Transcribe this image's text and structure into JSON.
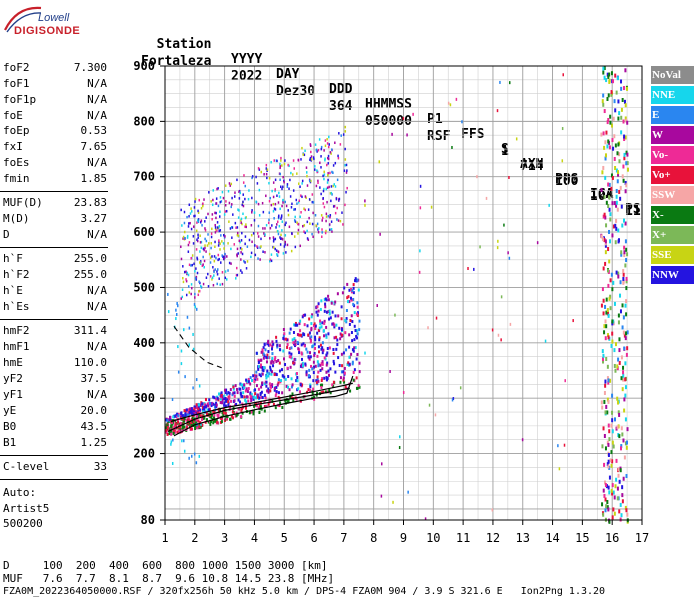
{
  "logo": {
    "line1": "Lowell",
    "line2": "DIGISONDE"
  },
  "header": {
    "row1": [
      "Station",
      "YYYY",
      "DAY",
      "DDD",
      "HHMMSS",
      "P1",
      "FFS",
      "S",
      "AXN",
      "PPS",
      "IGA",
      "PS"
    ],
    "row2": [
      "Fortaleza",
      "2022",
      "Dez30",
      "364",
      "050000",
      "RSF",
      "1",
      "714",
      "100",
      "10+",
      "11"
    ]
  },
  "params": [
    {
      "name": "foF2",
      "value": "7.300"
    },
    {
      "name": "foF1",
      "value": "N/A"
    },
    {
      "name": "foF1p",
      "value": "N/A"
    },
    {
      "name": "foE",
      "value": "N/A"
    },
    {
      "name": "foEp",
      "value": "0.53"
    },
    {
      "name": "fxI",
      "value": "7.65"
    },
    {
      "name": "foEs",
      "value": "N/A"
    },
    {
      "name": "fmin",
      "value": "1.85"
    },
    {
      "name": "MUF(D)",
      "value": "23.83"
    },
    {
      "name": "M(D)",
      "value": "3.27"
    },
    {
      "name": "D",
      "value": "N/A"
    },
    {
      "name": "h`F",
      "value": "255.0"
    },
    {
      "name": "h`F2",
      "value": "255.0"
    },
    {
      "name": "h`E",
      "value": "N/A"
    },
    {
      "name": "h`Es",
      "value": "N/A"
    },
    {
      "name": "hmF2",
      "value": "311.4"
    },
    {
      "name": "hmF1",
      "value": "N/A"
    },
    {
      "name": "hmE",
      "value": "110.0"
    },
    {
      "name": "yF2",
      "value": "37.5"
    },
    {
      "name": "yF1",
      "value": "N/A"
    },
    {
      "name": "yE",
      "value": "20.0"
    },
    {
      "name": "B0",
      "value": "43.5"
    },
    {
      "name": "B1",
      "value": "1.25"
    },
    {
      "name": "C-level",
      "value": "33"
    }
  ],
  "autoscaling": {
    "label": "Auto:",
    "artist": "Artist5",
    "version": "500200"
  },
  "legend": [
    {
      "label": "NoVal",
      "color": "#8c8c8c"
    },
    {
      "label": "NNE",
      "color": "#16d6ec"
    },
    {
      "label": "E",
      "color": "#2a86f0"
    },
    {
      "label": "W",
      "color": "#a8089e"
    },
    {
      "label": "Vo-",
      "color": "#ee2a96"
    },
    {
      "label": "Vo+",
      "color": "#e8123a"
    },
    {
      "label": "SSW",
      "color": "#f6a6a6"
    },
    {
      "label": "X-",
      "color": "#0a7a12"
    },
    {
      "label": "X+",
      "color": "#7cb858"
    },
    {
      "label": "SSE",
      "color": "#c8d414"
    },
    {
      "label": "NNW",
      "color": "#2414e0"
    }
  ],
  "chart_data": {
    "type": "scatter",
    "title": "",
    "xlabel": "",
    "ylabel": "",
    "xlim": [
      1,
      17
    ],
    "ylim": [
      80,
      900
    ],
    "x_ticks": [
      "1",
      "2",
      "3",
      "4",
      "5",
      "6",
      "7",
      "8",
      "9",
      "10",
      "11",
      "12",
      "13",
      "14",
      "15",
      "16",
      "17"
    ],
    "y_ticks": [
      "80",
      "200",
      "300",
      "400",
      "500",
      "600",
      "700",
      "800",
      "900"
    ],
    "f2_trace_ordinary": [
      [
        1.1,
        240
      ],
      [
        2,
        262
      ],
      [
        3,
        278
      ],
      [
        4,
        288
      ],
      [
        5,
        297
      ],
      [
        6,
        306
      ],
      [
        6.7,
        313
      ],
      [
        7.2,
        318
      ]
    ],
    "f2_trace_extraordinary": [
      [
        1.2,
        258
      ],
      [
        2,
        270
      ],
      [
        3,
        283
      ],
      [
        4,
        292
      ],
      [
        5,
        302
      ],
      [
        6,
        312
      ],
      [
        7,
        323
      ],
      [
        7.3,
        327
      ]
    ],
    "profile_curve": [
      [
        1.3,
        232
      ],
      [
        2,
        252
      ],
      [
        3,
        267
      ],
      [
        4,
        279
      ],
      [
        5,
        290
      ],
      [
        6,
        300
      ],
      [
        6.7,
        303
      ],
      [
        7.1,
        309
      ],
      [
        7.3,
        340
      ]
    ],
    "dashed_curve": [
      [
        1.3,
        430
      ],
      [
        1.8,
        392
      ],
      [
        2.4,
        365
      ],
      [
        2.9,
        355
      ]
    ],
    "echo_regions": [
      {
        "name": "F2 low",
        "x_range": [
          1.0,
          7.5
        ],
        "y_range": [
          240,
          380
        ]
      },
      {
        "name": "F2 multihop",
        "x_range": [
          1.5,
          7.2
        ],
        "y_range": [
          480,
          900
        ]
      }
    ]
  },
  "bottom": {
    "line1": "D     100  200  400  600  800 1000 1500 3000 [km]",
    "line2": "MUF   7.6  7.7  8.1  8.7  9.6 10.8 14.5 23.8 [MHz]",
    "line3": "FZA0M_2022364050000.RSF / 320fx256h 50 kHz 5.0 km / DPS-4 FZA0M 904 / 3.9 S 321.6 E   Ion2Png 1.3.20"
  }
}
